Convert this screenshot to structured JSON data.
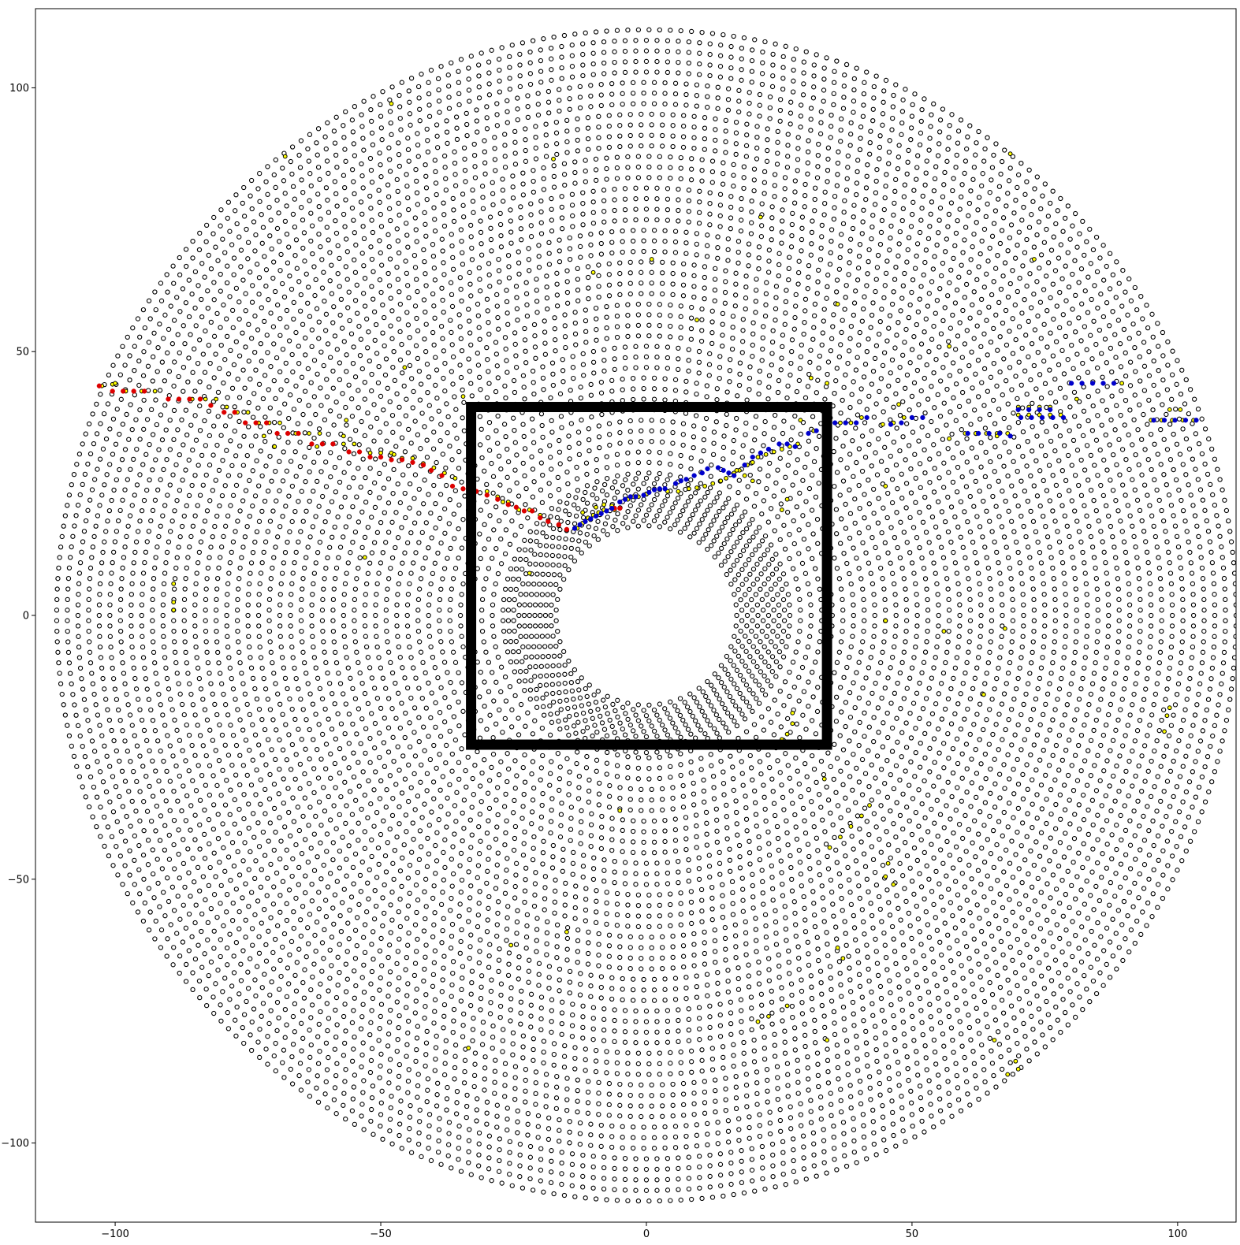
{
  "chart_data": {
    "type": "scatter",
    "title": "",
    "xlabel": "",
    "ylabel": "",
    "xlim": [
      -115,
      111
    ],
    "ylim": [
      -115,
      115
    ],
    "grid": false,
    "legend": "none",
    "x_ticks": [
      {
        "value": -100,
        "label": "−100"
      },
      {
        "value": -50,
        "label": "−50"
      },
      {
        "value": 0,
        "label": "0"
      },
      {
        "value": 50,
        "label": "50"
      },
      {
        "value": 100,
        "label": "100"
      }
    ],
    "y_ticks": [
      {
        "value": 100,
        "label": "100"
      },
      {
        "value": 50,
        "label": "50"
      },
      {
        "value": 0,
        "label": "0"
      },
      {
        "value": -50,
        "label": "−50"
      },
      {
        "value": -100,
        "label": "−100"
      }
    ],
    "rings": {
      "inner_radius": 17,
      "outer_radius": 111,
      "inner_spacing": 1.0,
      "inner_ring_count": 10,
      "outer_spacing": 2.0,
      "point_spacing": 2.0
    },
    "colors": {
      "edge": "#000000",
      "default_fill": "#ffffff",
      "highlight_fill": "#ffff00",
      "red_series": "#dd0000",
      "blue_series": "#0000cc",
      "rectangle": "#000000"
    },
    "highlighted_points": [
      [
        -102.5,
        43.5
      ],
      [
        -100.5,
        43.8
      ],
      [
        -98,
        42.5
      ],
      [
        -95,
        42.5
      ],
      [
        -92.5,
        42.5
      ],
      [
        -88,
        41
      ],
      [
        -85.5,
        41
      ],
      [
        -83,
        41
      ],
      [
        -81,
        41
      ],
      [
        -79,
        39.5
      ],
      [
        -77,
        38.5
      ],
      [
        -75,
        38.5
      ],
      [
        -73,
        36.5
      ],
      [
        -71,
        36.5
      ],
      [
        -69,
        36.5
      ],
      [
        -66,
        34.5
      ],
      [
        -63.5,
        34.5
      ],
      [
        -61.5,
        34.5
      ],
      [
        -59,
        32.5
      ],
      [
        -57,
        32.5
      ],
      [
        -55,
        32.5
      ],
      [
        -52,
        30.8
      ],
      [
        -50,
        30.8
      ],
      [
        -48,
        30.8
      ],
      [
        -46,
        29.8
      ],
      [
        -44,
        29.8
      ],
      [
        -42,
        28.8
      ],
      [
        -40,
        28
      ],
      [
        -38,
        27
      ],
      [
        -36,
        26
      ],
      [
        -34.5,
        24
      ],
      [
        -32.5,
        24
      ],
      [
        -30,
        23.5
      ],
      [
        -28,
        22.5
      ],
      [
        -26,
        21.5
      ],
      [
        -24,
        20
      ],
      [
        -22,
        20
      ],
      [
        -20,
        19
      ],
      [
        -18.5,
        18
      ],
      [
        -16.5,
        17
      ],
      [
        -15,
        16.2
      ],
      [
        -6,
        20
      ],
      [
        -12,
        19.5
      ],
      [
        -8,
        21
      ],
      [
        -9.5,
        20.5
      ],
      [
        31.5,
        35
      ],
      [
        34.5,
        36.5
      ],
      [
        36.5,
        36.5
      ],
      [
        38.5,
        36.5
      ],
      [
        40.5,
        37.5
      ],
      [
        44.5,
        36.2
      ],
      [
        46.5,
        36.5
      ],
      [
        48.5,
        37.5
      ],
      [
        50,
        37.5
      ],
      [
        60,
        34.5
      ],
      [
        62,
        34.5
      ],
      [
        64,
        34.5
      ],
      [
        66,
        34.5
      ],
      [
        68,
        34.5
      ],
      [
        70,
        38
      ],
      [
        72,
        38
      ],
      [
        74,
        38
      ],
      [
        76,
        38
      ],
      [
        78,
        38
      ],
      [
        70,
        39.5
      ],
      [
        72,
        39.5
      ],
      [
        74,
        39.5
      ],
      [
        76,
        39.5
      ],
      [
        80,
        44
      ],
      [
        82,
        44
      ],
      [
        84,
        44
      ],
      [
        86,
        44
      ],
      [
        88,
        44
      ],
      [
        95,
        37
      ],
      [
        97,
        37
      ],
      [
        99,
        37
      ],
      [
        101,
        37
      ],
      [
        103,
        37
      ],
      [
        28.5,
        32.5
      ],
      [
        27,
        32
      ],
      [
        25.5,
        31.5
      ],
      [
        24,
        31
      ],
      [
        22.5,
        30.5
      ],
      [
        21,
        30
      ],
      [
        20,
        29
      ],
      [
        19,
        28.5
      ],
      [
        17.5,
        27.5
      ],
      [
        16.5,
        27
      ],
      [
        15,
        26
      ],
      [
        14,
        25.5
      ],
      [
        12.5,
        25
      ],
      [
        11,
        24.5
      ],
      [
        9.5,
        24.2
      ],
      [
        8,
        24
      ],
      [
        6,
        23.5
      ],
      [
        4,
        23.5
      ],
      [
        2.5,
        24
      ],
      [
        1.5,
        24
      ],
      [
        0,
        23
      ],
      [
        -1.5,
        22.5
      ],
      [
        -2.5,
        22.5
      ],
      [
        -3.5,
        22
      ],
      [
        -5,
        21.5
      ],
      [
        -6.5,
        20.8
      ],
      [
        -8,
        20
      ],
      [
        -9,
        19.5
      ],
      [
        -10,
        19
      ],
      [
        -11,
        18.5
      ],
      [
        -12,
        17.5
      ],
      [
        -13,
        16.5
      ],
      [
        -100,
        44
      ],
      [
        -72,
        34
      ],
      [
        -70,
        32
      ],
      [
        -62,
        32
      ],
      [
        -45.5,
        47
      ],
      [
        -56.5,
        37
      ],
      [
        -57,
        34
      ],
      [
        -47.5,
        30.5
      ],
      [
        -33,
        25.5
      ],
      [
        -27,
        21.5
      ],
      [
        -53,
        11
      ],
      [
        -89,
        6
      ],
      [
        -89,
        2.5
      ],
      [
        -89,
        1
      ],
      [
        -22,
        8
      ],
      [
        -68,
        87
      ],
      [
        -48,
        97
      ],
      [
        -17.5,
        86.5
      ],
      [
        -34.5,
        41.5
      ],
      [
        -10,
        65
      ],
      [
        1,
        67.5
      ],
      [
        9.5,
        56
      ],
      [
        21.5,
        75.5
      ],
      [
        37.5,
        36.5
      ],
      [
        31,
        45
      ],
      [
        34,
        44
      ],
      [
        29,
        37
      ],
      [
        25.5,
        20
      ],
      [
        26.5,
        22
      ],
      [
        17,
        27.5
      ],
      [
        18.5,
        26.5
      ],
      [
        20,
        25.5
      ],
      [
        68.5,
        87.5
      ],
      [
        89.5,
        44
      ],
      [
        73,
        67.5
      ],
      [
        81,
        41
      ],
      [
        98.5,
        39
      ],
      [
        100.5,
        39
      ],
      [
        103.5,
        37
      ],
      [
        66,
        34
      ],
      [
        57,
        33.5
      ],
      [
        57,
        51
      ],
      [
        47.5,
        40
      ],
      [
        36,
        59
      ],
      [
        45,
        24.5
      ],
      [
        45,
        -1
      ],
      [
        56,
        -3
      ],
      [
        67.5,
        -2.5
      ],
      [
        63.5,
        -15
      ],
      [
        27.5,
        -18.5
      ],
      [
        27.5,
        -20.5
      ],
      [
        26.5,
        -22.5
      ],
      [
        25.5,
        -23.5
      ],
      [
        24.5,
        -24.5
      ],
      [
        33.5,
        -31
      ],
      [
        42,
        -36
      ],
      [
        40.5,
        -38
      ],
      [
        38.5,
        -40
      ],
      [
        36.5,
        -42
      ],
      [
        34.5,
        -44
      ],
      [
        45.5,
        -47
      ],
      [
        45,
        -49.5
      ],
      [
        46.5,
        -51
      ],
      [
        36,
        -63
      ],
      [
        37,
        -65
      ],
      [
        26.5,
        -74
      ],
      [
        23,
        -76
      ],
      [
        21,
        -77
      ],
      [
        34,
        -80.5
      ],
      [
        98.5,
        -17.5
      ],
      [
        98,
        -19
      ],
      [
        97.5,
        -22
      ],
      [
        69.5,
        -84.5
      ],
      [
        70,
        -86
      ],
      [
        68,
        -87
      ],
      [
        65.5,
        -80.5
      ],
      [
        -25.5,
        -62.5
      ],
      [
        -33.5,
        -82
      ],
      [
        -15,
        -60
      ],
      [
        -5,
        -37
      ]
    ],
    "red_points": [
      [
        -103,
        43.5
      ],
      [
        -100.5,
        42.5
      ],
      [
        -98.5,
        42.5
      ],
      [
        -96.5,
        42.5
      ],
      [
        -94.5,
        42.5
      ],
      [
        -90,
        41
      ],
      [
        -88,
        41
      ],
      [
        -86,
        41
      ],
      [
        -84,
        41
      ],
      [
        -82,
        39.8
      ],
      [
        -79.5,
        38.5
      ],
      [
        -77.5,
        38.5
      ],
      [
        -75.5,
        36.5
      ],
      [
        -73.5,
        36.5
      ],
      [
        -71.5,
        36.5
      ],
      [
        -69.5,
        34.5
      ],
      [
        -67.5,
        34.5
      ],
      [
        -65.5,
        34.5
      ],
      [
        -63,
        32.5
      ],
      [
        -61,
        32.5
      ],
      [
        -59,
        32.5
      ],
      [
        -56,
        31
      ],
      [
        -54,
        31
      ],
      [
        -52,
        30
      ],
      [
        -50,
        30
      ],
      [
        -48,
        29.5
      ],
      [
        -46,
        29.5
      ],
      [
        -44,
        29
      ],
      [
        -42,
        28.5
      ],
      [
        -40.5,
        27.5
      ],
      [
        -38.5,
        26.5
      ],
      [
        -36.5,
        24.5
      ],
      [
        -34.5,
        24
      ],
      [
        -32,
        23.5
      ],
      [
        -30,
        22.8
      ],
      [
        -28,
        22
      ],
      [
        -26,
        21
      ],
      [
        -24.5,
        20.5
      ],
      [
        -23,
        19.8
      ],
      [
        -21.5,
        19.8
      ],
      [
        -20,
        18.5
      ],
      [
        -18.5,
        17.8
      ],
      [
        -16.5,
        17.2
      ],
      [
        -15,
        16.3
      ],
      [
        -6,
        20.3
      ],
      [
        -5,
        20.3
      ]
    ],
    "blue_points": [
      [
        -13.5,
        16.5
      ],
      [
        -12.5,
        17.2
      ],
      [
        -11.5,
        17.8
      ],
      [
        -10.5,
        18.3
      ],
      [
        -9.5,
        18.8
      ],
      [
        -8.5,
        19.3
      ],
      [
        -7.5,
        19.8
      ],
      [
        -6.5,
        20.3
      ],
      [
        -5,
        21.5
      ],
      [
        -4,
        22
      ],
      [
        -3,
        22.5
      ],
      [
        -2,
        22.5
      ],
      [
        -0.5,
        22.8
      ],
      [
        0.5,
        23.3
      ],
      [
        1.5,
        23.8
      ],
      [
        2.5,
        24
      ],
      [
        3.5,
        24
      ],
      [
        5.5,
        25
      ],
      [
        6.5,
        25.5
      ],
      [
        7.5,
        25.8
      ],
      [
        9,
        26.5
      ],
      [
        10.5,
        27
      ],
      [
        11.5,
        27.8
      ],
      [
        13.5,
        28
      ],
      [
        14.5,
        27.5
      ],
      [
        15.5,
        27
      ],
      [
        16.5,
        26.5
      ],
      [
        18.5,
        28.5
      ],
      [
        20,
        30
      ],
      [
        21.5,
        30.8
      ],
      [
        23,
        31.5
      ],
      [
        25,
        32.5
      ],
      [
        26.5,
        32.5
      ],
      [
        28,
        32
      ],
      [
        30.5,
        34.5
      ],
      [
        32,
        35
      ],
      [
        35.5,
        36.5
      ],
      [
        37.5,
        36.5
      ],
      [
        39.5,
        36.5
      ],
      [
        41.5,
        37.5
      ],
      [
        46,
        36.2
      ],
      [
        48,
        36.5
      ],
      [
        50,
        37.5
      ],
      [
        52,
        37.5
      ],
      [
        60.5,
        34.5
      ],
      [
        62.5,
        34.5
      ],
      [
        64.5,
        34.5
      ],
      [
        66.5,
        34.5
      ],
      [
        68.5,
        34
      ],
      [
        70.5,
        37.5
      ],
      [
        72.5,
        37.5
      ],
      [
        74.5,
        37.5
      ],
      [
        76.5,
        37.5
      ],
      [
        78.5,
        37.5
      ],
      [
        70,
        39
      ],
      [
        72,
        39
      ],
      [
        74,
        39
      ],
      [
        76,
        39
      ],
      [
        80,
        44
      ],
      [
        82,
        44
      ],
      [
        84,
        44
      ],
      [
        86,
        44
      ],
      [
        88,
        44
      ],
      [
        95.5,
        37
      ],
      [
        97.5,
        37
      ],
      [
        99.5,
        37
      ],
      [
        101.5,
        37
      ],
      [
        103.5,
        37
      ]
    ],
    "rectangle": {
      "x0": -33,
      "x1": 34,
      "y0": -24.5,
      "y1": 39.5,
      "line_width_data": 1.5
    }
  }
}
